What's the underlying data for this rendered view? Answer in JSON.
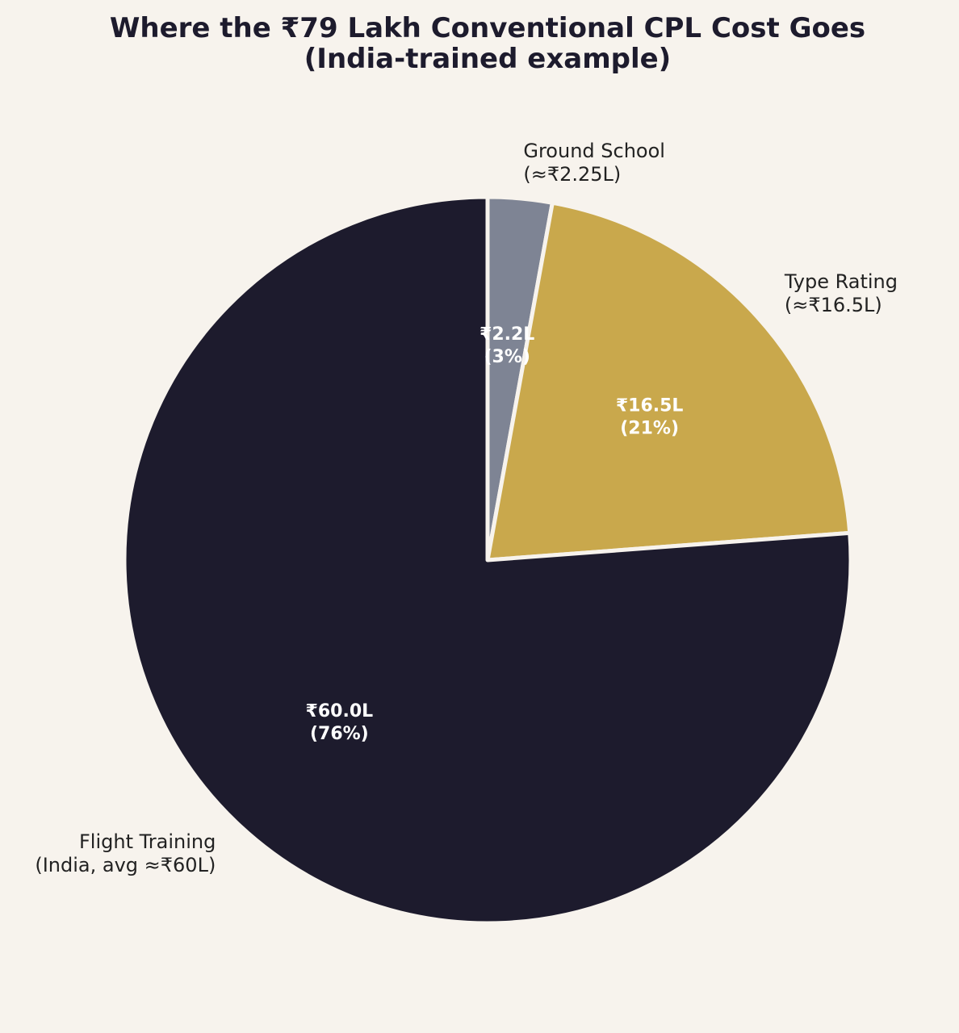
{
  "chart_data": {
    "type": "pie",
    "title": "Where the ₹79 Lakh Conventional CPL Cost Goes",
    "subtitle": "(India-trained example)",
    "start_angle_deg": 90,
    "direction": "clockwise",
    "slices": [
      {
        "category_line1": "Ground School",
        "category_line2": "(≈₹2.25L)",
        "value": 2.25,
        "value_label": "₹2.2L",
        "percent_label": "(3%)",
        "color": "#7e8494",
        "label_side": "right"
      },
      {
        "category_line1": "Type Rating",
        "category_line2": "(≈₹16.5L)",
        "value": 16.5,
        "value_label": "₹16.5L",
        "percent_label": "(21%)",
        "color": "#c9a84c",
        "label_side": "right"
      },
      {
        "category_line1": "Flight Training",
        "category_line2": "(India, avg ≈₹60L)",
        "value": 60,
        "value_label": "₹60.0L",
        "percent_label": "(76%)",
        "color": "#1d1b2d",
        "label_side": "left"
      }
    ],
    "separator_color": "#f7f3ed"
  }
}
